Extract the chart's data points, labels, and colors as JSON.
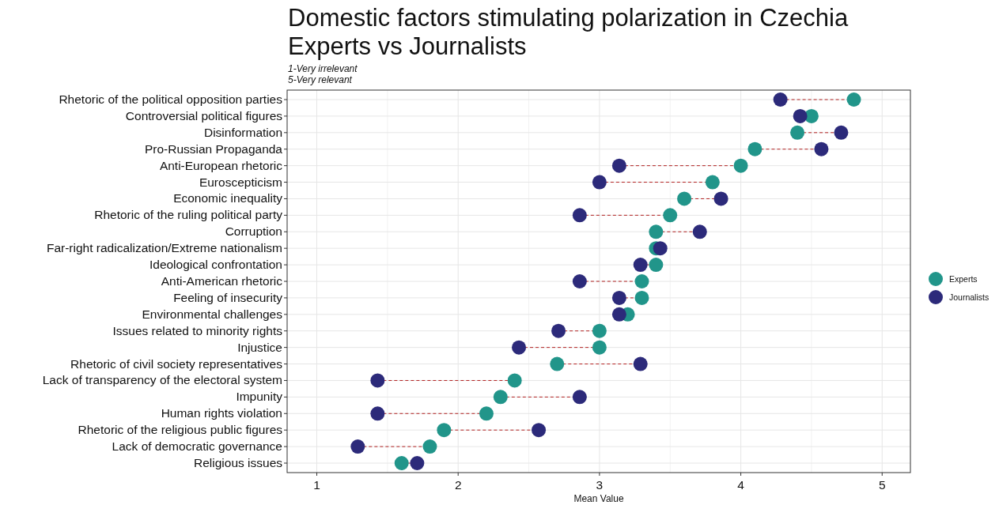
{
  "chart_data": {
    "type": "scatter",
    "title": "Domestic factors stimulating polarization in Czechia\nExperts vs Journalists",
    "subtitle": "1-Very irrelevant\n5-Very relevant",
    "xlabel": "Mean Value",
    "orientation": "horizontal",
    "categories": [
      "Rhetoric of the political opposition parties",
      "Controversial political figures",
      "Disinformation",
      "Pro-Russian Propaganda",
      "Anti-European rhetoric",
      "Euroscepticism",
      "Economic inequality",
      "Rhetoric of the ruling political party",
      "Corruption",
      "Far-right radicalization/Extreme nationalism",
      "Ideological confrontation",
      "Anti-American rhetoric",
      "Feeling of insecurity",
      "Environmental challenges",
      "Issues related to minority rights",
      "Injustice",
      "Rhetoric of civil society representatives",
      "Lack of transparency of the electoral system",
      "Impunity",
      "Human rights violation",
      "Rhetoric of the religious public figures",
      "Lack of democratic governance",
      "Religious issues"
    ],
    "series": [
      {
        "name": "Experts",
        "color": "#21958a",
        "values": [
          4.8,
          4.5,
          4.4,
          4.1,
          4.0,
          3.8,
          3.6,
          3.5,
          3.4,
          3.4,
          3.4,
          3.3,
          3.3,
          3.2,
          3.0,
          3.0,
          2.7,
          2.4,
          2.3,
          2.2,
          1.9,
          1.8,
          1.6
        ]
      },
      {
        "name": "Journalists",
        "color": "#2c2a7a",
        "values": [
          4.28,
          4.42,
          4.71,
          4.57,
          3.14,
          3.0,
          3.86,
          2.86,
          3.71,
          3.43,
          3.29,
          2.86,
          3.14,
          3.14,
          2.71,
          2.43,
          3.29,
          1.43,
          2.86,
          1.43,
          2.57,
          1.29,
          1.71
        ]
      }
    ],
    "xlim": [
      0.79,
      5.2
    ],
    "xticks": [
      1,
      2,
      3,
      4,
      5
    ],
    "grid": true,
    "legend": "right",
    "marker": "circle"
  }
}
